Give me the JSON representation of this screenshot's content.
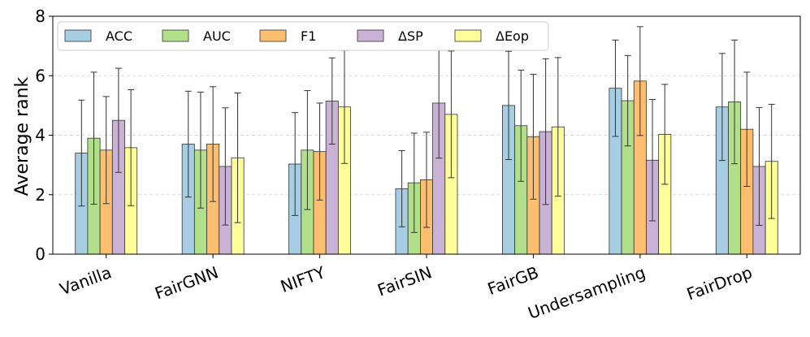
{
  "chart_data": {
    "type": "bar",
    "ylabel": "Average rank",
    "xlabel": "",
    "ylim": [
      0,
      8
    ],
    "yticks": [
      "0",
      "2",
      "4",
      "6",
      "8"
    ],
    "grid": "horizontal dashed",
    "legend_position": "top-left",
    "categories": [
      "Vanilla",
      "FairGNN",
      "NIFTY",
      "FairSIN",
      "FairGB",
      "Undersampling",
      "FairDrop"
    ],
    "series": [
      {
        "name": "ACC",
        "color": "#a6cde2",
        "values": [
          3.4,
          3.7,
          3.03,
          2.2,
          5.0,
          5.58,
          4.95
        ],
        "err": [
          1.78,
          1.78,
          1.73,
          1.28,
          1.82,
          1.62,
          1.8
        ]
      },
      {
        "name": "AUC",
        "color": "#b2df8a",
        "values": [
          3.9,
          3.5,
          3.5,
          2.4,
          4.32,
          5.16,
          5.12
        ],
        "err": [
          2.22,
          1.95,
          2.0,
          1.67,
          1.87,
          1.52,
          2.08
        ]
      },
      {
        "name": "F1",
        "color": "#fdbf6f",
        "values": [
          3.5,
          3.7,
          3.45,
          2.5,
          3.95,
          5.82,
          4.2
        ],
        "err": [
          1.8,
          1.93,
          1.63,
          1.6,
          2.1,
          1.83,
          1.92
        ]
      },
      {
        "name": "ΔSP",
        "color": "#cab2d6",
        "values": [
          4.5,
          2.95,
          5.15,
          5.08,
          4.12,
          3.16,
          2.95
        ],
        "err": [
          1.75,
          1.97,
          1.45,
          1.85,
          2.45,
          2.04,
          1.98
        ]
      },
      {
        "name": "ΔEop",
        "color": "#ffff99",
        "values": [
          3.58,
          3.24,
          4.95,
          4.7,
          4.28,
          4.03,
          3.12
        ],
        "err": [
          1.95,
          2.18,
          1.9,
          2.13,
          2.33,
          1.68,
          1.92
        ]
      }
    ]
  }
}
